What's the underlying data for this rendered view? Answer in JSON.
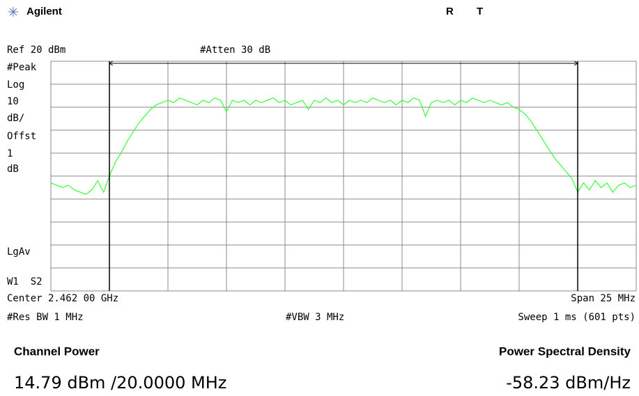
{
  "header": {
    "brand": "Agilent",
    "status": [
      "R",
      "T"
    ]
  },
  "settings": {
    "ref": "Ref 20 dBm",
    "atten": "#Atten 30 dB",
    "left": [
      "#Peak",
      "Log",
      "10",
      "dB/",
      "Offst",
      "1",
      "dB"
    ],
    "avg": "LgAv",
    "trace": "W1  S2",
    "center": "Center 2.462 00 GHz",
    "span": "Span 25 MHz",
    "rbw": "#Res BW 1 MHz",
    "vbw": "#VBW 3 MHz",
    "sweep": "Sweep 1 ms (601 pts)"
  },
  "chart_data": {
    "type": "line",
    "x": [
      2.4495,
      2.44975,
      2.45,
      2.45025,
      2.4505,
      2.45075,
      2.451,
      2.45125,
      2.4515,
      2.45175,
      2.452,
      2.45225,
      2.4525,
      2.45275,
      2.453,
      2.45325,
      2.4535,
      2.45375,
      2.454,
      2.45425,
      2.4545,
      2.45475,
      2.455,
      2.45525,
      2.4555,
      2.45575,
      2.456,
      2.45625,
      2.4565,
      2.45675,
      2.457,
      2.45725,
      2.4575,
      2.45775,
      2.458,
      2.45825,
      2.4585,
      2.45875,
      2.459,
      2.45925,
      2.4595,
      2.45975,
      2.46,
      2.46025,
      2.4605,
      2.46075,
      2.461,
      2.46125,
      2.4615,
      2.46175,
      2.462,
      2.46225,
      2.4625,
      2.46275,
      2.463,
      2.46325,
      2.4635,
      2.46375,
      2.464,
      2.46425,
      2.4645,
      2.46475,
      2.465,
      2.46525,
      2.4655,
      2.46575,
      2.466,
      2.46625,
      2.4665,
      2.46675,
      2.467,
      2.46725,
      2.4675,
      2.46775,
      2.468,
      2.46825,
      2.4685,
      2.46875,
      2.469,
      2.46925,
      2.4695,
      2.46975,
      2.47,
      2.47025,
      2.4705,
      2.47075,
      2.471,
      2.47125,
      2.4715,
      2.47175,
      2.472,
      2.47225,
      2.4725,
      2.47275,
      2.473,
      2.47325,
      2.4735,
      2.47375,
      2.474,
      2.47425,
      2.4745
    ],
    "series": [
      {
        "color": "#33ff33",
        "values": [
          -33,
          -34,
          -35,
          -34,
          -36,
          -37,
          -38,
          -36,
          -32,
          -37,
          -30,
          -24,
          -20,
          -15,
          -11,
          -7,
          -4,
          -1,
          1,
          2,
          3,
          2,
          4,
          3,
          2,
          1,
          3,
          2,
          4,
          3,
          -2,
          3,
          2,
          3,
          1,
          3,
          2,
          3,
          4,
          2,
          3,
          1,
          2,
          3,
          -1,
          3,
          2,
          4,
          2,
          3,
          1,
          3,
          2,
          3,
          2,
          4,
          3,
          2,
          3,
          1,
          3,
          2,
          4,
          3,
          -4,
          2,
          3,
          2,
          3,
          1,
          3,
          2,
          4,
          3,
          2,
          3,
          2,
          1,
          2,
          0,
          -1,
          -3,
          -6,
          -10,
          -14,
          -18,
          -22,
          -25,
          -28,
          -31,
          -37,
          -33,
          -36,
          -32,
          -35,
          -33,
          -37,
          -34,
          -33,
          -35,
          -34
        ]
      }
    ],
    "xlim": [
      2.4495,
      2.4745
    ],
    "xticks": [
      2.4495,
      2.452,
      2.4545,
      2.457,
      2.4595,
      2.462,
      2.4645,
      2.467,
      2.4695,
      2.472,
      2.4745
    ],
    "ylim": [
      -80,
      20
    ],
    "yticks": [
      -80,
      -70,
      -60,
      -50,
      -40,
      -30,
      -20,
      -10,
      0,
      10,
      20
    ],
    "grid": true,
    "channel_edges": [
      2.452,
      2.472
    ]
  },
  "measurements": {
    "left_title": "Channel Power",
    "left_value": "14.79 dBm /20.0000 MHz",
    "right_title": "Power Spectral Density",
    "right_value": "-58.23 dBm/Hz"
  }
}
